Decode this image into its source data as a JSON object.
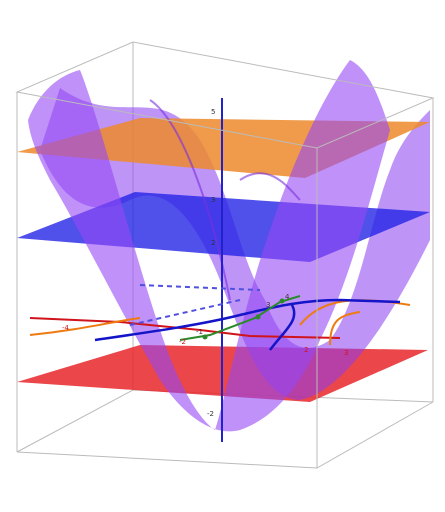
{
  "z_axis_labels": [
    "5",
    "3",
    "2",
    "-2"
  ],
  "x_axis_labels": [
    "-4",
    "-2",
    "2",
    "3"
  ],
  "y_axis_labels": [
    "-1",
    "3",
    "4"
  ]
}
